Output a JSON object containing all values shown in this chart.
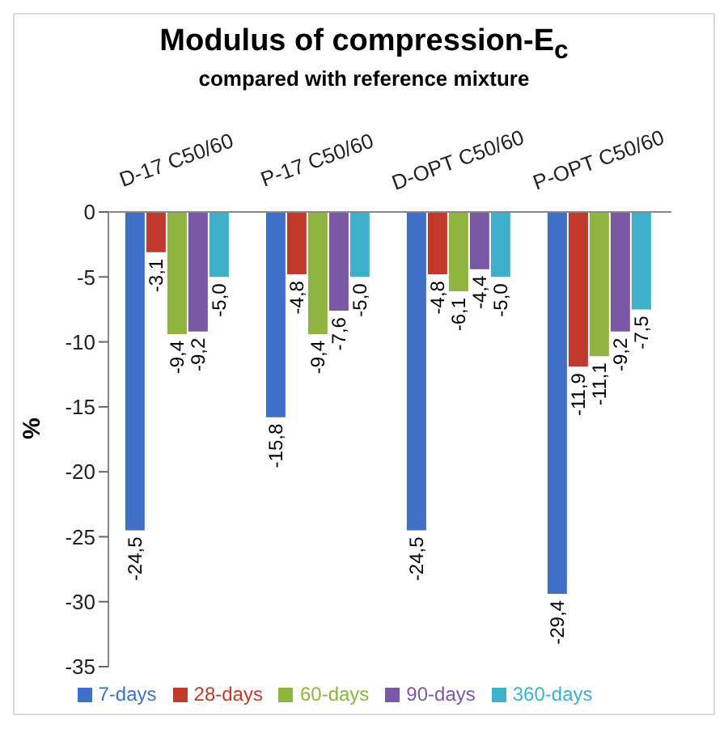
{
  "chart_data": {
    "type": "bar",
    "title": "Modulus of compression-E$_{c}$",
    "subtitle": "compared with reference mixture",
    "ylabel": "%",
    "categories": [
      "D-17 C50/60",
      "P-17 C50/60",
      "D-OPT C50/60",
      "P-OPT C50/60"
    ],
    "series": [
      {
        "name": "7-days",
        "color": "#3f6fc6",
        "values": [
          -24.5,
          -15.8,
          -24.5,
          -29.4
        ],
        "value_labels": [
          "-24,5",
          "-15,8",
          "-24,5",
          "-29,4"
        ]
      },
      {
        "name": "28-days",
        "color": "#c0392b",
        "values": [
          -3.1,
          -4.8,
          -4.8,
          -11.9
        ],
        "value_labels": [
          "-3,1",
          "-4,8",
          "-4,8",
          "-11,9"
        ]
      },
      {
        "name": "60-days",
        "color": "#8fb43f",
        "values": [
          -9.4,
          -9.4,
          -6.1,
          -11.1
        ],
        "value_labels": [
          "-9,4",
          "-9,4",
          "-6,1",
          "-11,1"
        ]
      },
      {
        "name": "90-days",
        "color": "#7a58a6",
        "values": [
          -9.2,
          -7.6,
          -4.4,
          -9.2
        ],
        "value_labels": [
          "-9,2",
          "-7,6",
          "-4,4",
          "-9,2"
        ]
      },
      {
        "name": "360-days",
        "color": "#3fb0cc",
        "values": [
          -5.0,
          -5.0,
          -5.0,
          -7.5
        ],
        "value_labels": [
          "-5,0",
          "-5,0",
          "-5,0",
          "-7,5"
        ]
      }
    ],
    "ylim": [
      -35,
      0
    ],
    "yticks": [
      -35,
      -30,
      -25,
      -20,
      -15,
      -10,
      -5,
      0
    ],
    "grid": false,
    "legend": "bottom"
  }
}
